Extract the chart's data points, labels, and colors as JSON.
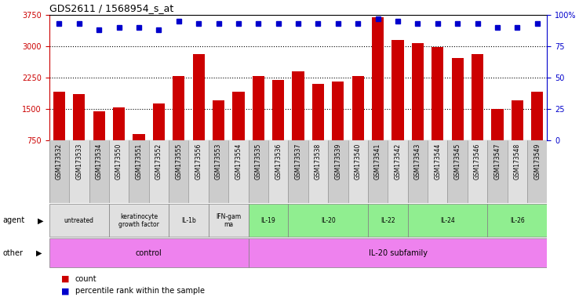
{
  "title": "GDS2611 / 1568954_s_at",
  "samples": [
    "GSM173532",
    "GSM173533",
    "GSM173534",
    "GSM173550",
    "GSM173551",
    "GSM173552",
    "GSM173555",
    "GSM173556",
    "GSM173553",
    "GSM173554",
    "GSM173535",
    "GSM173536",
    "GSM173537",
    "GSM173538",
    "GSM173539",
    "GSM173540",
    "GSM173541",
    "GSM173542",
    "GSM173543",
    "GSM173544",
    "GSM173545",
    "GSM173546",
    "GSM173547",
    "GSM173548",
    "GSM173549"
  ],
  "counts": [
    1900,
    1850,
    1430,
    1530,
    900,
    1620,
    2280,
    2820,
    1700,
    1900,
    2280,
    2200,
    2400,
    2100,
    2160,
    2280,
    3700,
    3160,
    3080,
    2990,
    2720,
    2820,
    1500,
    1700,
    1900
  ],
  "percentile_ranks": [
    93,
    93,
    88,
    90,
    90,
    88,
    95,
    93,
    93,
    93,
    93,
    93,
    93,
    93,
    93,
    93,
    97,
    95,
    93,
    93,
    93,
    93,
    90,
    90,
    93
  ],
  "bar_color": "#cc0000",
  "dot_color": "#0000cc",
  "ylim_left": [
    750,
    3750
  ],
  "ylim_right": [
    0,
    100
  ],
  "yticks_left": [
    750,
    1500,
    2250,
    3000,
    3750
  ],
  "ytick_labels_left": [
    "750",
    "1500",
    "2250",
    "3000",
    "3750"
  ],
  "yticks_right": [
    0,
    25,
    50,
    75,
    100
  ],
  "ytick_labels_right": [
    "0",
    "25",
    "50",
    "75",
    "100%"
  ],
  "agent_groups": [
    {
      "label": "untreated",
      "start": 0,
      "end": 2,
      "color": "#e0e0e0"
    },
    {
      "label": "keratinocyte\ngrowth factor",
      "start": 3,
      "end": 5,
      "color": "#e0e0e0"
    },
    {
      "label": "IL-1b",
      "start": 6,
      "end": 7,
      "color": "#e0e0e0"
    },
    {
      "label": "IFN-gam\nma",
      "start": 8,
      "end": 9,
      "color": "#e0e0e0"
    },
    {
      "label": "IL-19",
      "start": 10,
      "end": 11,
      "color": "#90ee90"
    },
    {
      "label": "IL-20",
      "start": 12,
      "end": 15,
      "color": "#90ee90"
    },
    {
      "label": "IL-22",
      "start": 16,
      "end": 17,
      "color": "#90ee90"
    },
    {
      "label": "IL-24",
      "start": 18,
      "end": 21,
      "color": "#90ee90"
    },
    {
      "label": "IL-26",
      "start": 22,
      "end": 24,
      "color": "#90ee90"
    }
  ],
  "other_groups": [
    {
      "label": "control",
      "start": 0,
      "end": 9,
      "color": "#ee82ee"
    },
    {
      "label": "IL-20 subfamily",
      "start": 10,
      "end": 24,
      "color": "#ee82ee"
    }
  ],
  "bg_color": "#ffffff",
  "tick_label_color_left": "#cc0000",
  "tick_label_color_right": "#0000cc",
  "hline_ticks": [
    1500,
    2250,
    3000
  ],
  "legend_items": [
    {
      "color": "#cc0000",
      "label": "count"
    },
    {
      "color": "#0000cc",
      "label": "percentile rank within the sample"
    }
  ]
}
